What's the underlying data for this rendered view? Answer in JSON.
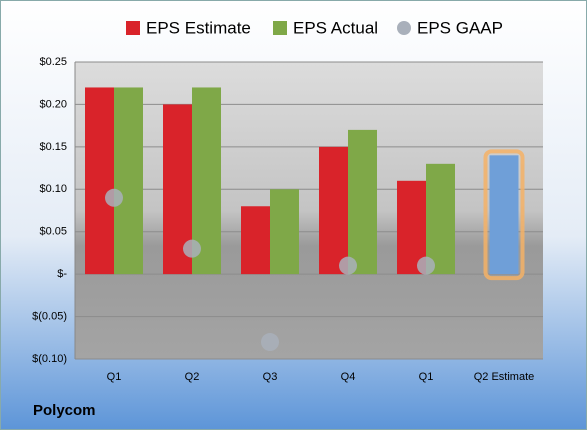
{
  "chart_data": {
    "type": "bar",
    "title": "Polycom",
    "categories": [
      "Q1",
      "Q2",
      "Q3",
      "Q4",
      "Q1",
      "Q2 Estimate"
    ],
    "series": [
      {
        "name": "EPS Estimate",
        "color": "#d9232a",
        "values": [
          0.22,
          0.2,
          0.08,
          0.15,
          0.11,
          0.14
        ]
      },
      {
        "name": "EPS Actual",
        "color": "#7fa848",
        "values": [
          0.22,
          0.22,
          0.1,
          0.17,
          0.13,
          null
        ]
      },
      {
        "name": "EPS GAAP",
        "color": "#a9b0bb",
        "type": "scatter",
        "values": [
          0.09,
          0.03,
          -0.08,
          0.01,
          0.01,
          null
        ]
      }
    ],
    "highlight": {
      "index": 5,
      "color": "#6f9fd8",
      "outline": "#f5b266"
    },
    "ylim": [
      -0.1,
      0.25
    ],
    "yticks": [
      {
        "value": -0.1,
        "label": "$(0.10)"
      },
      {
        "value": -0.05,
        "label": "$(0.05)"
      },
      {
        "value": 0,
        "label": "$-"
      },
      {
        "value": 0.05,
        "label": "$0.05"
      },
      {
        "value": 0.1,
        "label": "$0.10"
      },
      {
        "value": 0.15,
        "label": "$0.15"
      },
      {
        "value": 0.2,
        "label": "$0.20"
      },
      {
        "value": 0.25,
        "label": "$0.25"
      }
    ],
    "grid": true
  }
}
